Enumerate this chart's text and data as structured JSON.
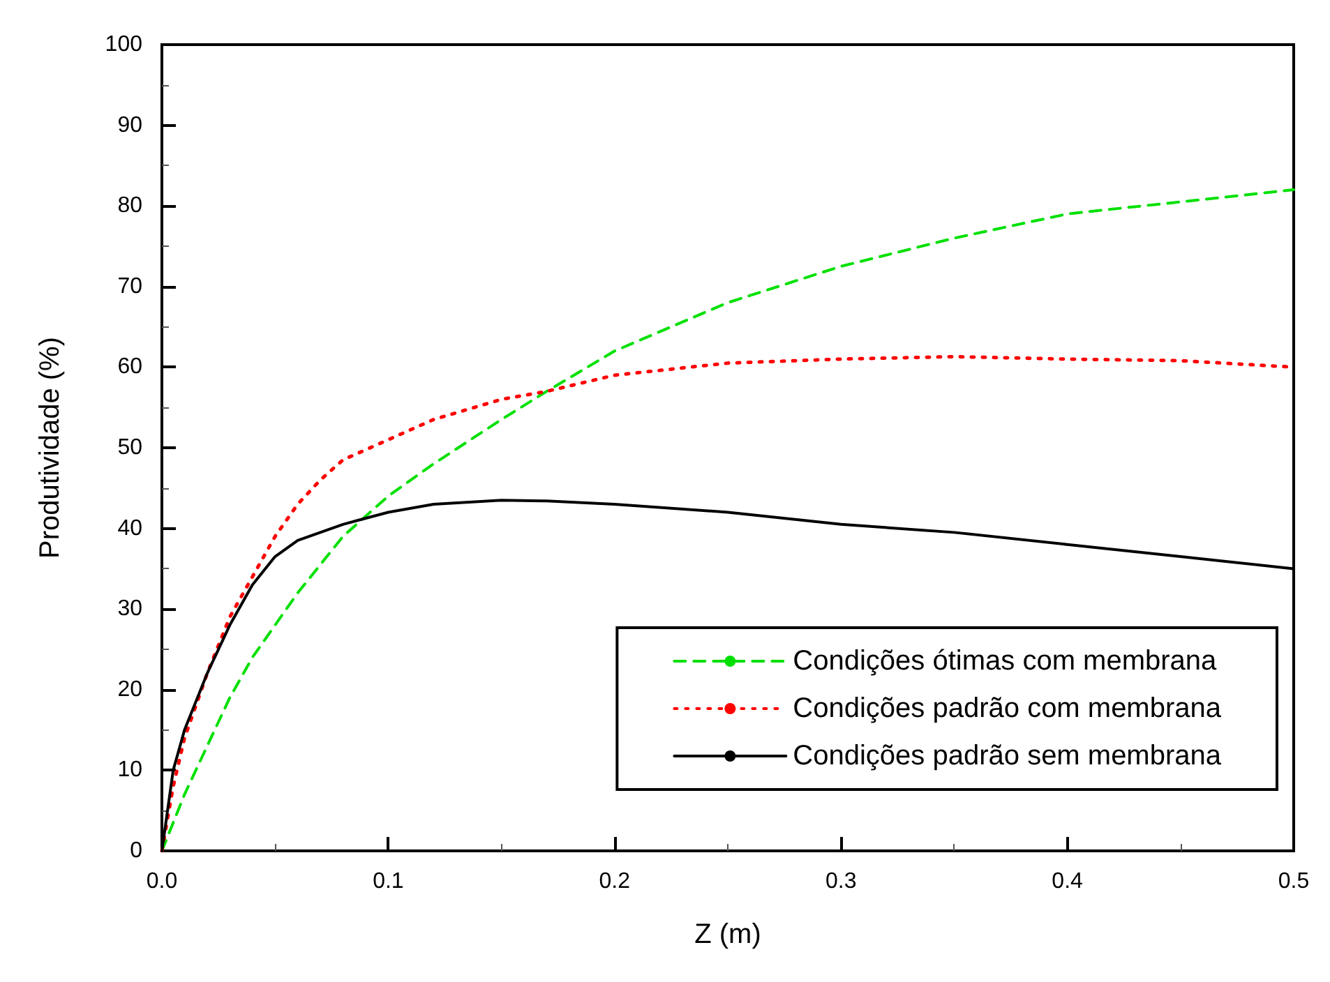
{
  "chart_data": {
    "type": "line",
    "xlabel": "Z (m)",
    "ylabel": "Produtividade (%)",
    "xlim": [
      0,
      0.5
    ],
    "xticks": [
      {
        "value": 0,
        "label": "0.0"
      },
      0.1,
      0.2,
      0.3,
      0.4,
      0.5
    ],
    "ylim": [
      0,
      100
    ],
    "yticks": [
      0,
      10,
      20,
      30,
      40,
      50,
      60,
      70,
      80,
      90,
      100
    ],
    "grid": false,
    "legend": "bottom right",
    "marker": "none",
    "series": [
      {
        "name": "Condições ótimas com membrana",
        "color": "#00e000",
        "line_style": "dashed",
        "x": [
          0,
          0.01,
          0.02,
          0.03,
          0.04,
          0.05,
          0.06,
          0.07,
          0.08,
          0.1,
          0.12,
          0.15,
          0.17,
          0.2,
          0.25,
          0.3,
          0.35,
          0.4,
          0.45,
          0.5
        ],
        "values": [
          0,
          7,
          13,
          19,
          24,
          28,
          32,
          35.5,
          39,
          44,
          48,
          53.5,
          57,
          62,
          68,
          72.5,
          76,
          79,
          80.5,
          82
        ]
      },
      {
        "name": "Condições padrão com membrana",
        "color": "#ff0000",
        "line_style": "dotted",
        "x": [
          0,
          0.005,
          0.01,
          0.02,
          0.03,
          0.04,
          0.05,
          0.06,
          0.07,
          0.08,
          0.1,
          0.12,
          0.15,
          0.17,
          0.2,
          0.25,
          0.3,
          0.35,
          0.4,
          0.45,
          0.5
        ],
        "values": [
          0,
          8,
          14,
          22,
          29,
          34,
          39,
          43,
          46,
          48.5,
          51,
          53.5,
          56,
          57,
          59,
          60.5,
          61,
          61.3,
          61,
          60.8,
          60
        ]
      },
      {
        "name": "Condições padrão sem membrana",
        "color": "#000000",
        "line_style": "solid",
        "x": [
          0,
          0.005,
          0.01,
          0.02,
          0.03,
          0.04,
          0.05,
          0.06,
          0.08,
          0.1,
          0.12,
          0.15,
          0.17,
          0.2,
          0.25,
          0.3,
          0.35,
          0.4,
          0.45,
          0.5
        ],
        "values": [
          0,
          10,
          15,
          22,
          28,
          33,
          36.5,
          38.5,
          40.5,
          42,
          43,
          43.5,
          43.4,
          43,
          42,
          40.5,
          39.5,
          38,
          36.5,
          35
        ]
      }
    ]
  }
}
